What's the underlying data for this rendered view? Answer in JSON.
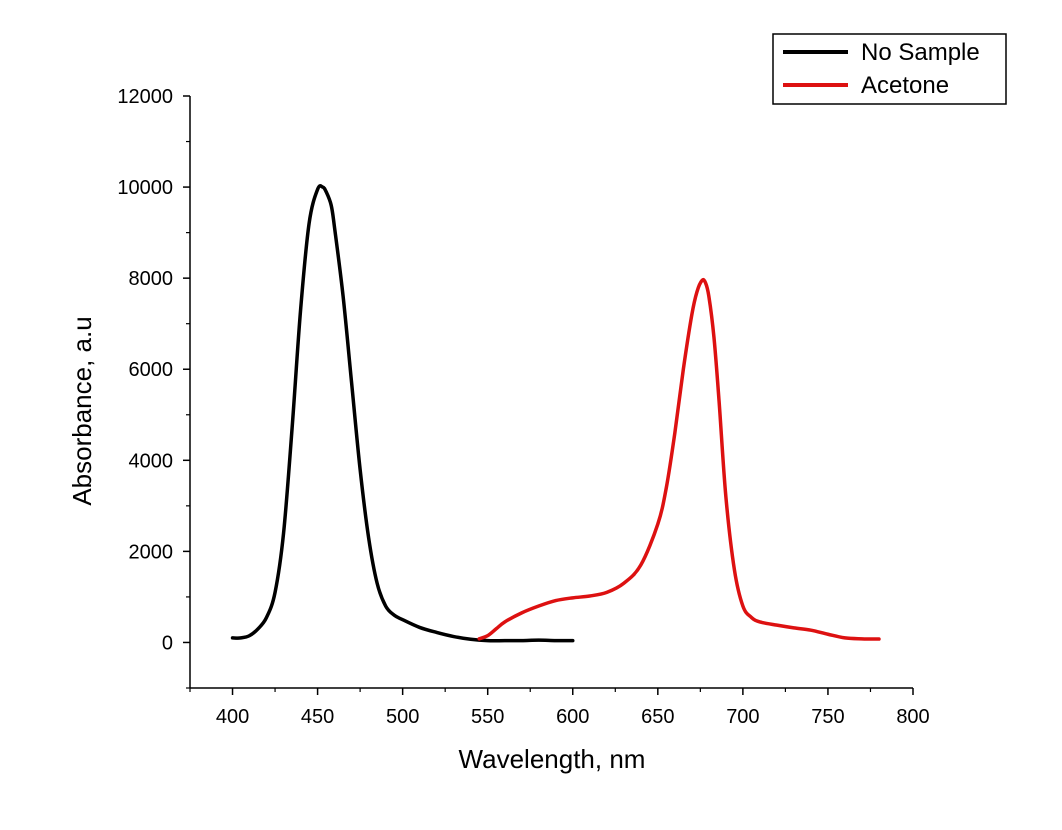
{
  "chart_data": {
    "type": "line",
    "title": "",
    "xlabel": "Wavelength, nm",
    "ylabel": "Absorbance, a.u",
    "xlim": [
      375,
      800
    ],
    "ylim": [
      -1000,
      12000
    ],
    "x_ticks": [
      400,
      450,
      500,
      550,
      600,
      650,
      700,
      750,
      800
    ],
    "y_ticks": [
      0,
      2000,
      4000,
      6000,
      8000,
      10000,
      12000
    ],
    "grid": false,
    "legend_position": "top-right",
    "series": [
      {
        "name": "No Sample",
        "color": "#000000",
        "x": [
          400,
          405,
          410,
          415,
          420,
          425,
          430,
          435,
          440,
          445,
          450,
          453,
          455,
          458,
          460,
          465,
          470,
          475,
          480,
          485,
          490,
          495,
          500,
          510,
          520,
          530,
          540,
          550,
          560,
          570,
          580,
          590,
          600
        ],
        "y": [
          100,
          100,
          150,
          300,
          550,
          1100,
          2400,
          4700,
          7300,
          9200,
          9950,
          10000,
          9900,
          9600,
          9100,
          7600,
          5700,
          3800,
          2300,
          1300,
          800,
          600,
          500,
          330,
          220,
          130,
          70,
          40,
          40,
          40,
          50,
          40,
          40
        ]
      },
      {
        "name": "Acetone",
        "color": "#dd1111",
        "x": [
          545,
          550,
          555,
          560,
          570,
          580,
          590,
          600,
          610,
          620,
          630,
          640,
          650,
          655,
          660,
          665,
          670,
          673,
          676,
          678,
          680,
          683,
          686,
          690,
          695,
          700,
          705,
          710,
          720,
          730,
          740,
          750,
          760,
          770,
          780
        ],
        "y": [
          80,
          150,
          300,
          450,
          650,
          800,
          920,
          980,
          1020,
          1100,
          1300,
          1700,
          2600,
          3400,
          4600,
          6000,
          7200,
          7700,
          7950,
          7900,
          7600,
          6700,
          5300,
          3200,
          1600,
          800,
          550,
          450,
          380,
          320,
          270,
          180,
          100,
          80,
          75
        ]
      }
    ]
  }
}
